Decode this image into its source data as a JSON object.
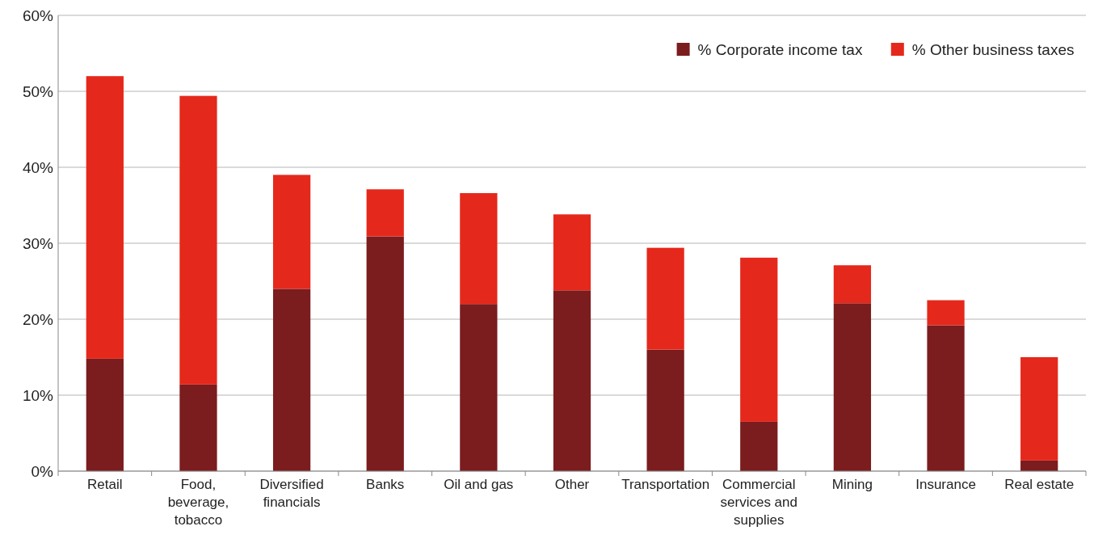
{
  "chart_data": {
    "type": "bar",
    "stacked": true,
    "categories": [
      "Retail",
      "Food, beverage, tobacco",
      "Diversified financials",
      "Banks",
      "Oil and gas",
      "Other",
      "Transportation",
      "Commercial services and supplies",
      "Mining",
      "Insurance",
      "Real estate"
    ],
    "series": [
      {
        "name": "% Corporate income tax",
        "color": "#7b1c1e",
        "values": [
          14.8,
          11.4,
          24.0,
          30.9,
          22.0,
          23.8,
          16.0,
          6.5,
          22.1,
          19.2,
          1.4
        ]
      },
      {
        "name": "% Other business taxes",
        "color": "#e5281c",
        "values": [
          37.2,
          38.0,
          15.0,
          6.2,
          14.6,
          10.0,
          13.4,
          21.6,
          5.0,
          3.3,
          13.6
        ]
      }
    ],
    "ylim": [
      0,
      60
    ],
    "yticks": [
      {
        "value": 0,
        "label": "0%"
      },
      {
        "value": 10,
        "label": "10%"
      },
      {
        "value": 20,
        "label": "20%"
      },
      {
        "value": 30,
        "label": "30%"
      },
      {
        "value": 40,
        "label": "40%"
      },
      {
        "value": 50,
        "label": "50%"
      },
      {
        "value": 60,
        "label": "60%"
      }
    ],
    "grid": "y",
    "legend": "top right"
  }
}
